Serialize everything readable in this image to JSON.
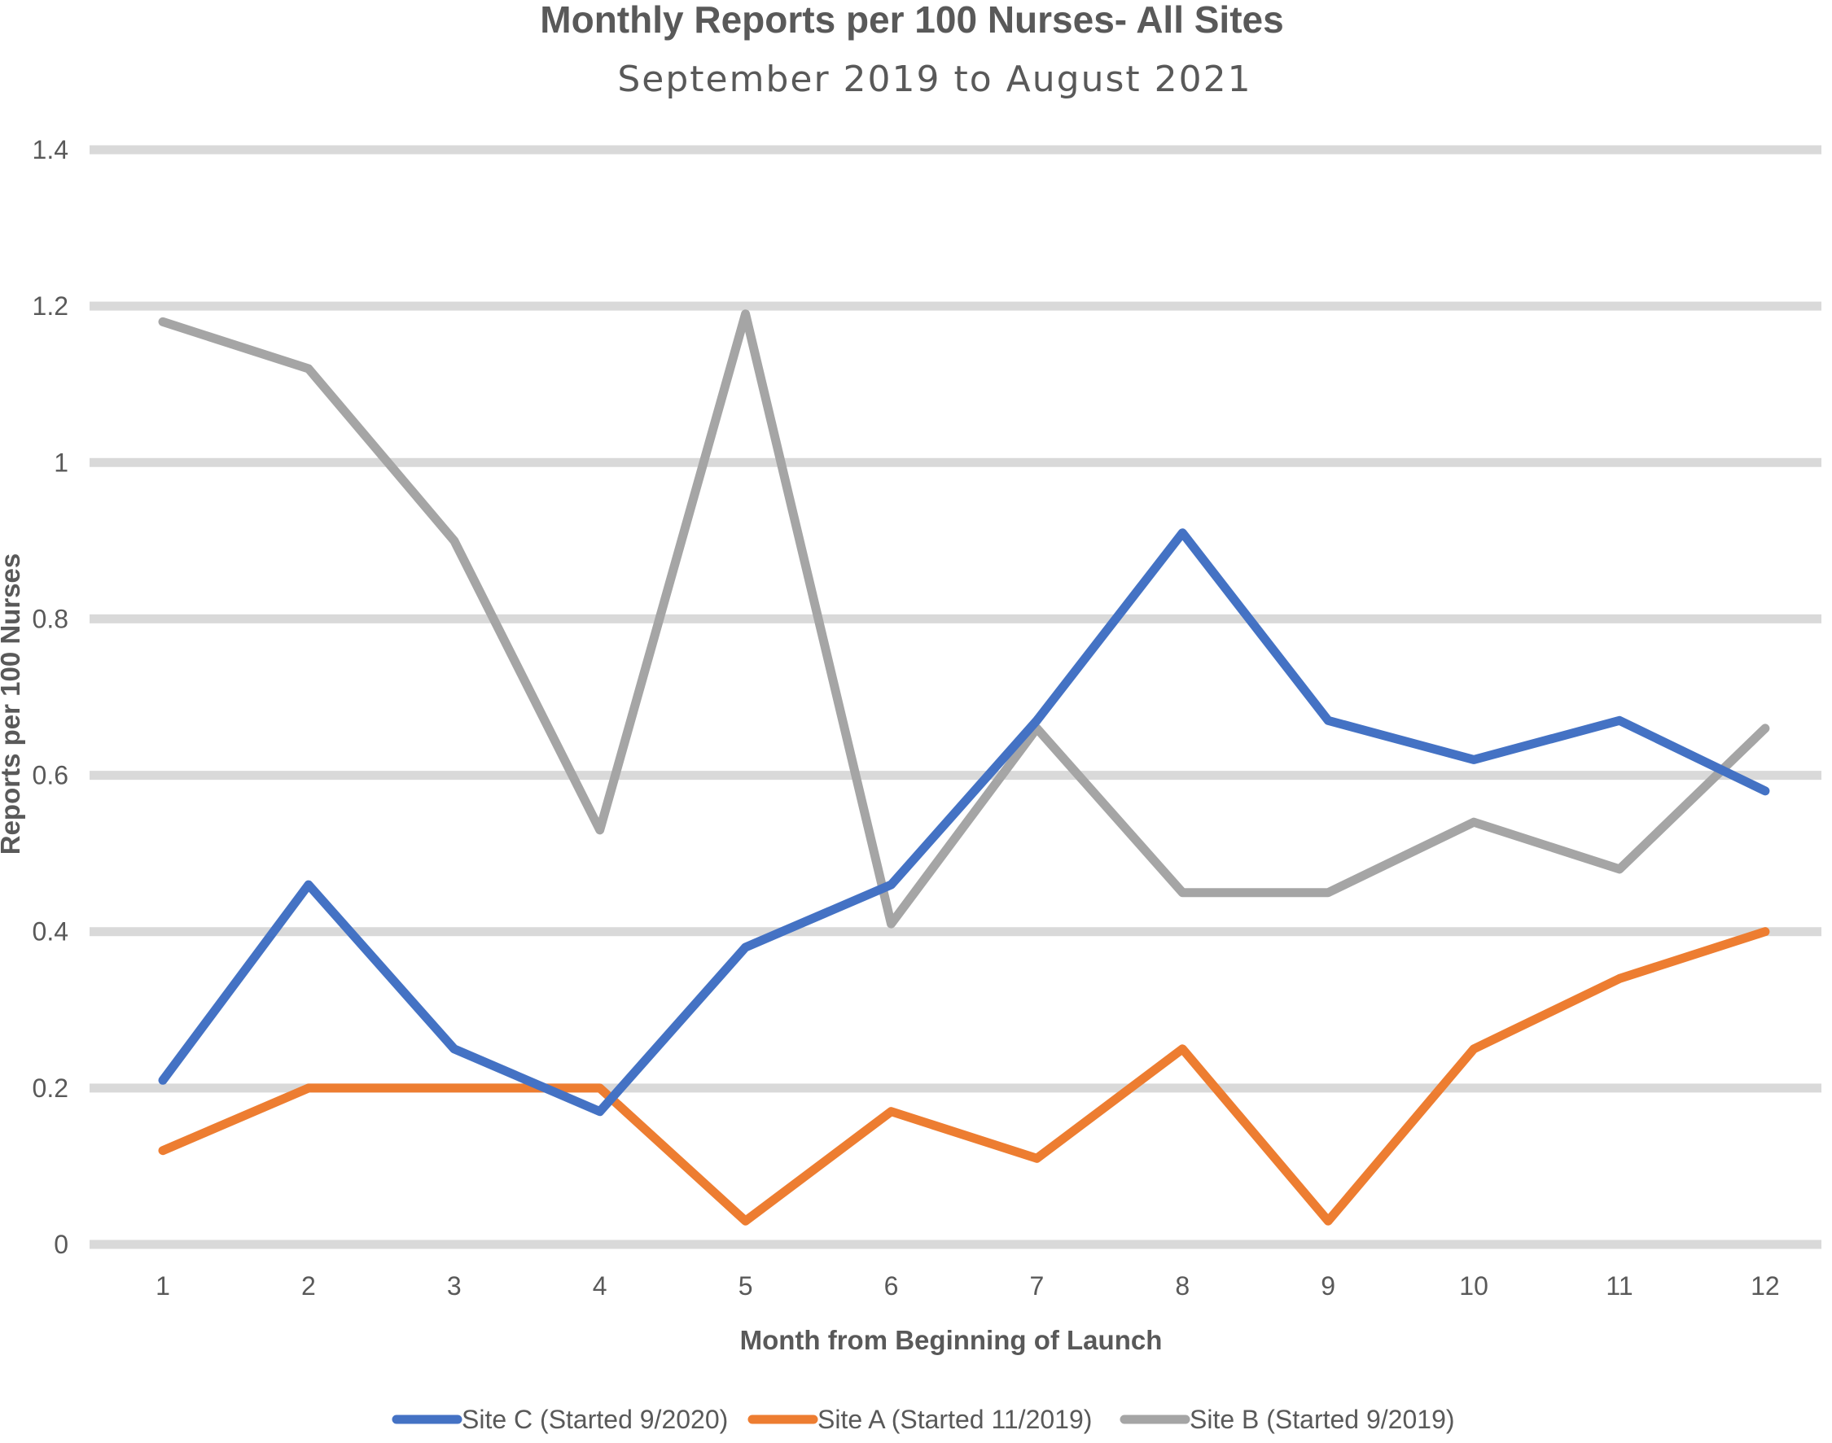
{
  "chart_data": {
    "type": "line",
    "title": "Monthly Reports per 100 Nurses- All Sites",
    "subtitle": "September 2019 to August 2021",
    "xlabel": "Month from Beginning of Launch",
    "ylabel": "Reports per 100 Nurses",
    "categories": [
      "1",
      "2",
      "3",
      "4",
      "5",
      "6",
      "7",
      "8",
      "9",
      "10",
      "11",
      "12"
    ],
    "y_ticks": [
      "0",
      "0.2",
      "0.4",
      "0.6",
      "0.8",
      "1",
      "1.2",
      "1.4"
    ],
    "ylim": [
      0,
      1.4
    ],
    "grid": true,
    "legend_position": "bottom",
    "series": [
      {
        "name": "Site C (Started 9/2020)",
        "color": "#4472c4",
        "values": [
          0.21,
          0.46,
          0.25,
          0.17,
          0.38,
          0.46,
          0.67,
          0.91,
          0.67,
          0.62,
          0.67,
          0.58
        ]
      },
      {
        "name": "Site A (Started 11/2019)",
        "color": "#ed7d31",
        "values": [
          0.12,
          0.2,
          0.2,
          0.2,
          0.03,
          0.17,
          0.11,
          0.25,
          0.03,
          0.25,
          0.34,
          0.4
        ]
      },
      {
        "name": "Site B (Started 9/2019)",
        "color": "#a5a5a5",
        "values": [
          1.18,
          1.12,
          0.9,
          0.53,
          1.19,
          0.41,
          0.66,
          0.45,
          0.45,
          0.54,
          0.48,
          0.66
        ]
      }
    ]
  }
}
